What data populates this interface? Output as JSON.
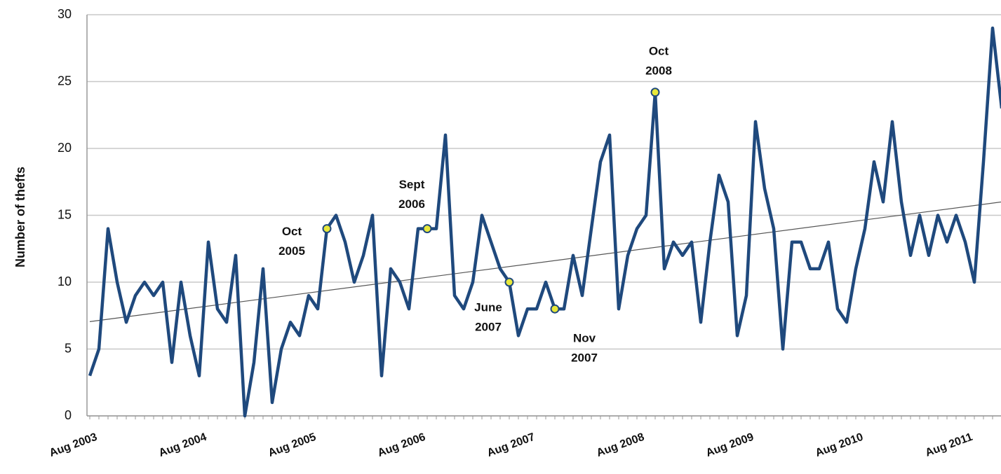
{
  "chart_data": {
    "type": "line",
    "y_label": "Number of thefts",
    "categories": [
      "Aug 2003",
      null,
      null,
      null,
      null,
      null,
      null,
      null,
      null,
      null,
      null,
      null,
      "Aug 2004",
      null,
      null,
      null,
      null,
      null,
      null,
      null,
      null,
      null,
      null,
      null,
      "Aug 2005",
      null,
      null,
      null,
      null,
      null,
      null,
      null,
      null,
      null,
      null,
      null,
      "Aug 2006",
      null,
      null,
      null,
      null,
      null,
      null,
      null,
      null,
      null,
      null,
      null,
      "Aug 2007",
      null,
      null,
      null,
      null,
      null,
      null,
      null,
      null,
      null,
      null,
      null,
      "Aug 2008",
      null,
      null,
      null,
      null,
      null,
      null,
      null,
      null,
      null,
      null,
      null,
      "Aug 2009",
      null,
      null,
      null,
      null,
      null,
      null,
      null,
      null,
      null,
      null,
      null,
      "Aug 2010",
      null,
      null,
      null,
      null,
      null,
      null,
      null,
      null,
      null,
      null,
      null,
      "Aug 2011",
      null,
      null,
      null,
      null
    ],
    "series": [
      {
        "name": "Thefts",
        "color": "#1f497d",
        "values": [
          3,
          5,
          14,
          10,
          7,
          9,
          10,
          9,
          10,
          4,
          10,
          6,
          3,
          13,
          8,
          7,
          12,
          0,
          4,
          11,
          1,
          5,
          7,
          6,
          9,
          8,
          14,
          15,
          13,
          10,
          12,
          15,
          3,
          11,
          10,
          8,
          14,
          14,
          14,
          21,
          9,
          8,
          10,
          15,
          13,
          11,
          10,
          6,
          8,
          8,
          10,
          8,
          8,
          12,
          9,
          14,
          19,
          21,
          8,
          12,
          14,
          15,
          24.2,
          11,
          13,
          12,
          13,
          7,
          13,
          18,
          16,
          6,
          9,
          22,
          17,
          14,
          5,
          13,
          13,
          11,
          11,
          13,
          8,
          7,
          11,
          14,
          19,
          16,
          22,
          16,
          12,
          15,
          12,
          15,
          13,
          15,
          13,
          10,
          19,
          29,
          23
        ]
      }
    ],
    "trendline": {
      "color": "#555555",
      "start": 7.05,
      "end": 16
    },
    "annotations": [
      {
        "index": 26,
        "lines": [
          "Oct",
          "2005"
        ],
        "position": "left"
      },
      {
        "index": 37,
        "lines": [
          "Sept",
          "2006"
        ],
        "position": "above-left"
      },
      {
        "index": 46,
        "lines": [
          "June",
          "2007"
        ],
        "position": "below-left"
      },
      {
        "index": 51,
        "lines": [
          "Nov",
          "2007"
        ],
        "position": "right"
      },
      {
        "index": 62,
        "lines": [
          "Oct",
          "2008"
        ],
        "position": "above"
      }
    ],
    "marker_color": "#e8e83a",
    "ylim": [
      0,
      30
    ],
    "yticks": [
      0,
      5,
      10,
      15,
      20,
      25,
      30
    ],
    "grid": true
  }
}
